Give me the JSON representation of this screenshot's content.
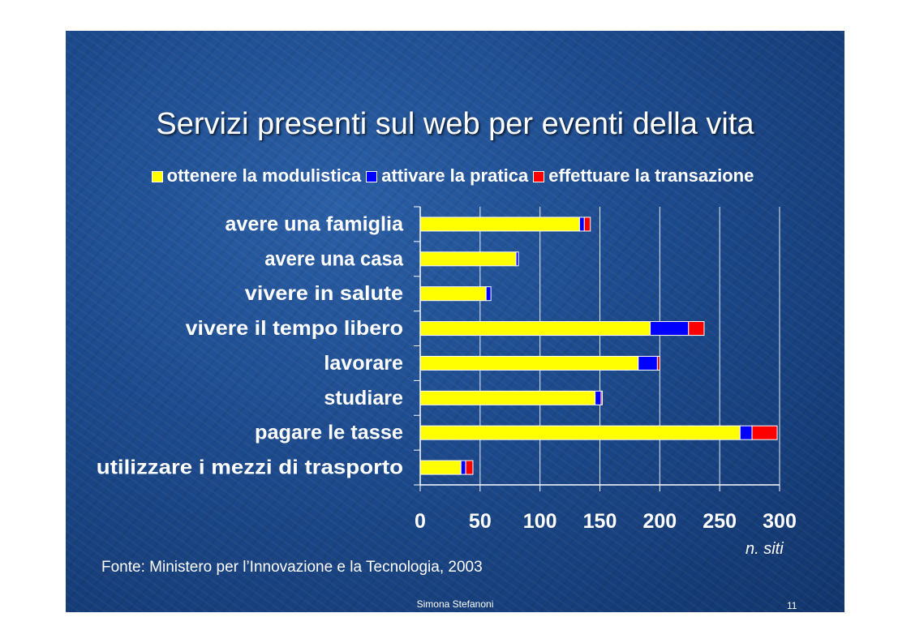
{
  "slide": {
    "title": "Servizi presenti sul web per eventi della vita",
    "source": "Fonte: Ministero per l’Innovazione e la Tecnologia, 2003",
    "author": "Simona Stefanoni",
    "page_number": "11",
    "unit_label": "n. siti"
  },
  "chart_data": {
    "type": "bar",
    "orientation": "horizontal",
    "stacked": true,
    "categories": [
      "avere una famiglia",
      "avere una casa",
      "vivere in salute",
      "vivere il tempo libero",
      "lavorare",
      "studiare",
      "pagare le tasse",
      "utilizzare i mezzi di trasporto"
    ],
    "series": [
      {
        "name": "ottenere la modulistica",
        "color": "#ffff00",
        "values": [
          133,
          80,
          55,
          192,
          182,
          146,
          267,
          34
        ]
      },
      {
        "name": "attivare la pratica",
        "color": "#0000ff",
        "values": [
          4,
          2,
          4,
          32,
          16,
          5,
          10,
          4
        ]
      },
      {
        "name": "effettuare la transazione",
        "color": "#ff0000",
        "values": [
          5,
          0,
          0,
          13,
          2,
          1,
          21,
          6
        ]
      }
    ],
    "xlabel": "n. siti",
    "xlim": [
      0,
      300
    ],
    "xticks": [
      0,
      50,
      100,
      150,
      200,
      250,
      300
    ],
    "grid": "vertical",
    "legend": "top"
  }
}
